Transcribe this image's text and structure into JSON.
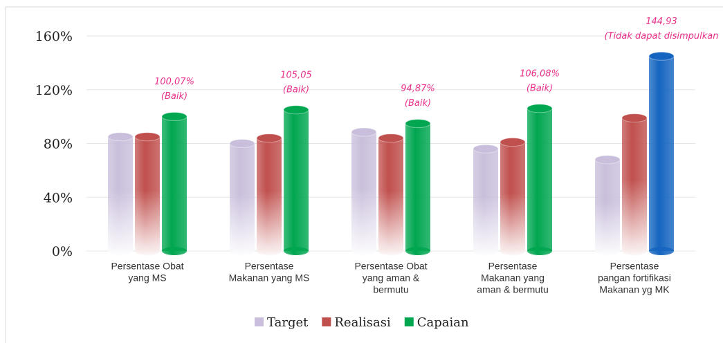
{
  "chart_data": {
    "type": "bar3d",
    "categories": [
      [
        "Persentase Obat",
        "yang MS"
      ],
      [
        "Persentase",
        "Makanan yang MS"
      ],
      [
        "Persentase Obat",
        "yang aman &",
        "bermutu"
      ],
      [
        "Persentase",
        "Makanan yang",
        "aman & bermutu"
      ],
      [
        "Persentase",
        "pangan fortifikasi",
        "Makanan yg MK"
      ]
    ],
    "series": [
      {
        "name": "Target",
        "color": "#c9bfdc",
        "fade": true,
        "values": [
          85,
          80,
          88.5,
          76,
          68
        ]
      },
      {
        "name": "Realisasi",
        "color": "#c0504d",
        "fade": true,
        "values": [
          85,
          84,
          84,
          81,
          99
        ]
      },
      {
        "name": "Capaian",
        "color": "#00a650",
        "fade": false,
        "values": [
          100.07,
          105.05,
          94.87,
          106.08,
          144.93
        ],
        "point_colors": [
          null,
          null,
          null,
          null,
          "#1565c0"
        ],
        "value_labels": [
          "100,07%",
          "105,05",
          "94,87%",
          "106,08%",
          "144,93"
        ],
        "value_notes": [
          "(Baik)",
          "(Baik)",
          "(Baik)",
          "(Baik)",
          "(Tidak dapat disimpulkan"
        ]
      }
    ],
    "ylim": [
      0,
      160
    ],
    "yticks": [
      {
        "value": 0,
        "label": "0%"
      },
      {
        "value": 40,
        "label": "40%"
      },
      {
        "value": 80,
        "label": "80%"
      },
      {
        "value": 120,
        "label": "120%"
      },
      {
        "value": 160,
        "label": "160%"
      }
    ],
    "grid": true,
    "legend": "bottom"
  }
}
